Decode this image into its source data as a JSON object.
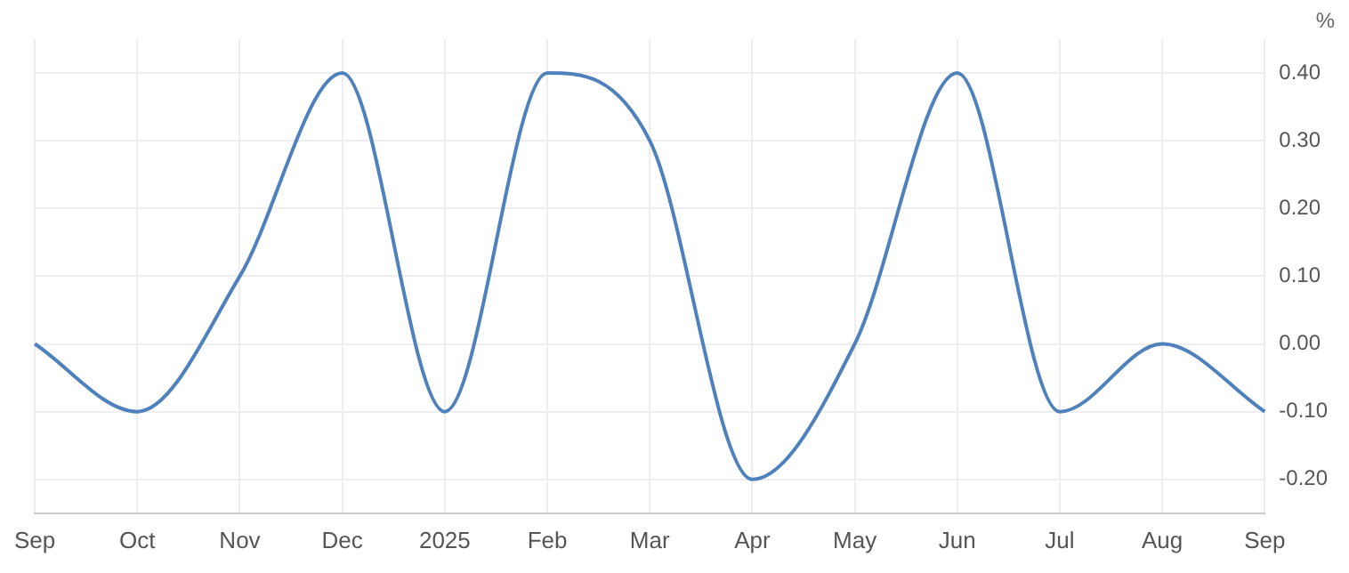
{
  "chart_data": {
    "type": "line",
    "ylabel": "%",
    "categories": [
      "Sep",
      "Oct",
      "Nov",
      "Dec",
      "2025",
      "Feb",
      "Mar",
      "Apr",
      "May",
      "Jun",
      "Jul",
      "Aug",
      "Sep"
    ],
    "series": [
      {
        "color": "#4f81bd",
        "values": [
          0,
          -0.1,
          0.1,
          0.4,
          -0.1,
          0.4,
          0.3,
          -0.2,
          0,
          0.4,
          -0.1,
          0,
          -0.1
        ]
      }
    ],
    "ylim": [
      -0.25,
      0.45
    ],
    "yticks": [
      {
        "value": -0.2,
        "label": "-0.20"
      },
      {
        "value": -0.1,
        "label": "-0.10"
      },
      {
        "value": 0,
        "label": "0.00"
      },
      {
        "value": 0.1,
        "label": "0.10"
      },
      {
        "value": 0.2,
        "label": "0.20"
      },
      {
        "value": 0.3,
        "label": "0.30"
      },
      {
        "value": 0.4,
        "label": "0.40"
      }
    ],
    "grid": true,
    "legend": false,
    "marker": "none",
    "line_style": "solid"
  }
}
